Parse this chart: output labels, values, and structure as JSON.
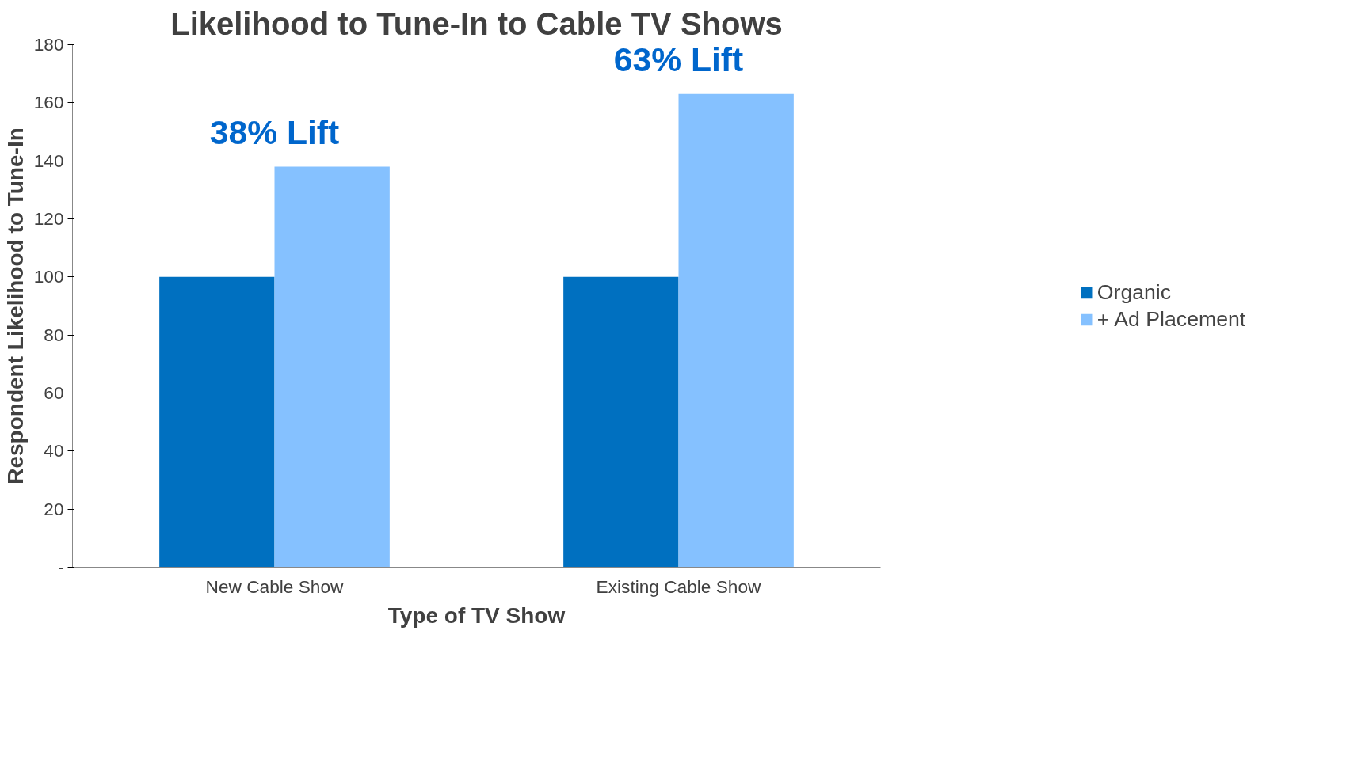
{
  "chart_data": {
    "type": "bar",
    "title": "Likelihood to Tune-In to Cable TV Shows",
    "xlabel": "Type of TV Show",
    "ylabel": "Respondent Likelihood to Tune-In",
    "categories": [
      "New Cable Show",
      "Existing Cable Show"
    ],
    "series": [
      {
        "name": "Organic",
        "color": "#0070c0",
        "values": [
          100,
          100
        ]
      },
      {
        "name": "+ Ad Placement",
        "color": "#85c1ff",
        "values": [
          138,
          163
        ]
      }
    ],
    "ylim": [
      0,
      180
    ],
    "yticks": [
      {
        "value": 0,
        "label": "-"
      },
      20,
      40,
      60,
      80,
      100,
      120,
      140,
      160,
      180
    ],
    "annotations": [
      "38% Lift",
      "63% Lift"
    ],
    "grid": false,
    "legend": "right"
  }
}
